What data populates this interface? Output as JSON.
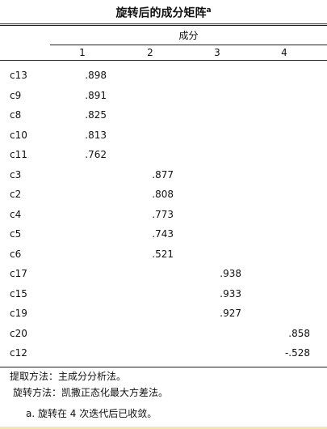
{
  "title": "旋转后的成分矩阵",
  "title_sup": "a",
  "group_header": "成分",
  "columns": [
    "1",
    "2",
    "3",
    "4"
  ],
  "rows": [
    {
      "label": "c13",
      "values": [
        ".898",
        "",
        "",
        ""
      ]
    },
    {
      "label": "c9",
      "values": [
        ".891",
        "",
        "",
        ""
      ]
    },
    {
      "label": "c8",
      "values": [
        ".825",
        "",
        "",
        ""
      ]
    },
    {
      "label": "c10",
      "values": [
        ".813",
        "",
        "",
        ""
      ]
    },
    {
      "label": "c11",
      "values": [
        ".762",
        "",
        "",
        ""
      ]
    },
    {
      "label": "c3",
      "values": [
        "",
        ".877",
        "",
        ""
      ]
    },
    {
      "label": "c2",
      "values": [
        "",
        ".808",
        "",
        ""
      ]
    },
    {
      "label": "c4",
      "values": [
        "",
        ".773",
        "",
        ""
      ]
    },
    {
      "label": "c5",
      "values": [
        "",
        ".743",
        "",
        ""
      ]
    },
    {
      "label": "c6",
      "values": [
        "",
        ".521",
        "",
        ""
      ]
    },
    {
      "label": "c17",
      "values": [
        "",
        "",
        ".938",
        ""
      ]
    },
    {
      "label": "c15",
      "values": [
        "",
        "",
        ".933",
        ""
      ]
    },
    {
      "label": "c19",
      "values": [
        "",
        "",
        ".927",
        ""
      ]
    },
    {
      "label": "c20",
      "values": [
        "",
        "",
        "",
        ".858"
      ]
    },
    {
      "label": "c12",
      "values": [
        "",
        "",
        "",
        "-.528"
      ]
    }
  ],
  "notes": {
    "extraction": "提取方法：主成分分析法。",
    "rotation": "旋转方法：凯撒正态化最大方差法。",
    "footnote": "a. 旋转在 4 次迭代后已收敛。"
  }
}
